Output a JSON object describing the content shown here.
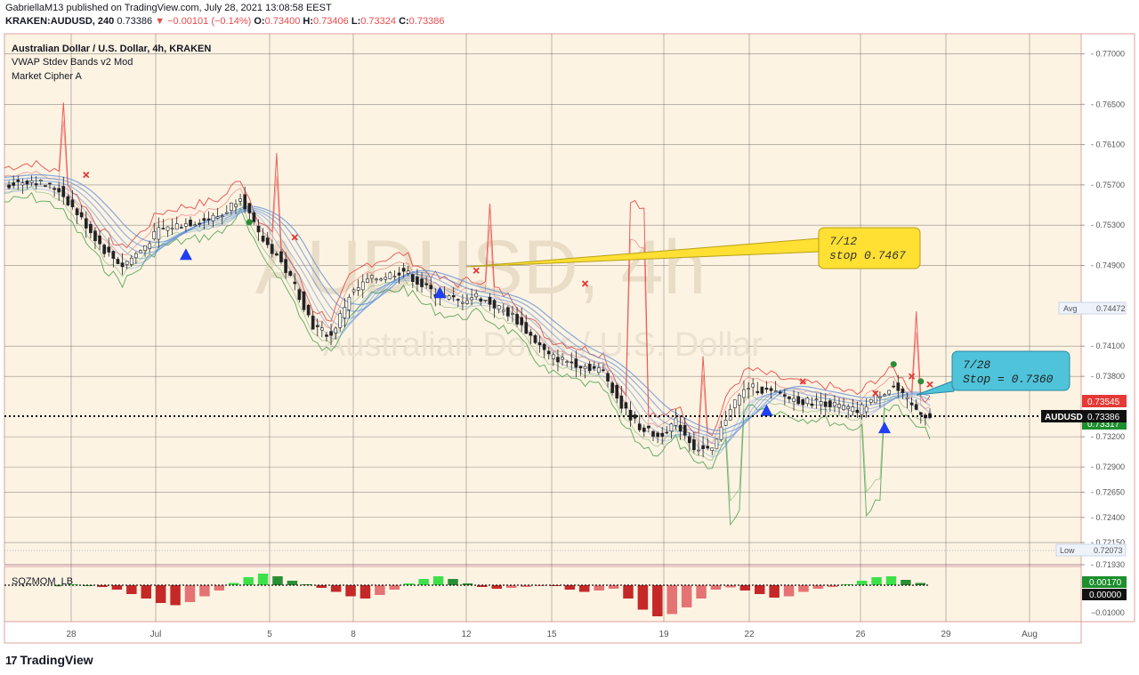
{
  "header": {
    "publisher_line": "GabriellaM13 published on TradingView.com, July 28, 2021 13:08:58 EEST",
    "symbol": "KRAKEN:AUDUSD, 240",
    "last": "0.73386",
    "change": "−0.00101 (−0.14%)",
    "o_label": "O:",
    "o": "0.73400",
    "h_label": "H:",
    "h": "0.73406",
    "l_label": "L:",
    "l": "0.73324",
    "c_label": "C:",
    "c": "0.73386"
  },
  "legend": {
    "title": "Australian Dollar / U.S. Dollar, 4h, KRAKEN",
    "indicator1": "VWAP Stdev Bands v2 Mod",
    "indicator2": "Market Cipher A"
  },
  "watermark": {
    "line1": "AUDUSD, 4h",
    "line2": "Australian Dollar / U.S. Dollar"
  },
  "colors": {
    "background": "#fdf3e3",
    "up": "#26a69a",
    "down": "#ef5350",
    "green_band": "#43a047",
    "red_band": "#e53935",
    "ribbon": "#5c8fd6",
    "callout_yellow": "#ffe033",
    "callout_blue": "#4fc3d9"
  },
  "callouts": [
    {
      "line1": "7/12",
      "line2": "stop 0.7467"
    },
    {
      "line1": "7/28",
      "line2": "Stop = 0.7360"
    }
  ],
  "price_labels": [
    {
      "text": "Avg",
      "value": "0.74472"
    },
    {
      "text": "",
      "value": "0.73545"
    },
    {
      "text": "AUDUSD",
      "value": "0.73386"
    },
    {
      "text": "",
      "value": "0.73317"
    },
    {
      "text": "Low",
      "value": "0.72073"
    }
  ],
  "oscillator": {
    "name": "SQZMOM_LB",
    "labels": [
      "0.00170",
      "0.00000",
      "−0.01000"
    ]
  },
  "branding": "TradingView",
  "chart_data": {
    "type": "candlestick",
    "ylim": [
      0.7193,
      0.772
    ],
    "y_ticks": [
      "0.77000",
      "0.76500",
      "0.76100",
      "0.75700",
      "0.75300",
      "0.74900",
      "0.74100",
      "0.73800",
      "0.73200",
      "0.72900",
      "0.72650",
      "0.72400",
      "0.72150",
      "0.71930"
    ],
    "x_ticks": [
      "28",
      "Jul",
      "5",
      "8",
      "12",
      "15",
      "19",
      "22",
      "26",
      "29",
      "Aug"
    ],
    "approx_close_path": [
      [
        0,
        0.757
      ],
      [
        6,
        0.7575
      ],
      [
        12,
        0.7565
      ],
      [
        18,
        0.753
      ],
      [
        22,
        0.7505
      ],
      [
        26,
        0.749
      ],
      [
        30,
        0.7505
      ],
      [
        34,
        0.7525
      ],
      [
        38,
        0.753
      ],
      [
        44,
        0.7535
      ],
      [
        48,
        0.754
      ],
      [
        52,
        0.756
      ],
      [
        56,
        0.752
      ],
      [
        60,
        0.75
      ],
      [
        64,
        0.747
      ],
      [
        68,
        0.743
      ],
      [
        72,
        0.742
      ],
      [
        76,
        0.746
      ],
      [
        80,
        0.7475
      ],
      [
        84,
        0.748
      ],
      [
        88,
        0.7485
      ],
      [
        92,
        0.747
      ],
      [
        96,
        0.746
      ],
      [
        100,
        0.7455
      ],
      [
        104,
        0.746
      ],
      [
        108,
        0.745
      ],
      [
        112,
        0.744
      ],
      [
        116,
        0.742
      ],
      [
        120,
        0.74
      ],
      [
        124,
        0.7395
      ],
      [
        128,
        0.739
      ],
      [
        132,
        0.7385
      ],
      [
        136,
        0.735
      ],
      [
        140,
        0.733
      ],
      [
        144,
        0.732
      ],
      [
        148,
        0.7335
      ],
      [
        152,
        0.731
      ],
      [
        156,
        0.7305
      ],
      [
        160,
        0.735
      ],
      [
        164,
        0.737
      ],
      [
        168,
        0.7365
      ],
      [
        172,
        0.736
      ],
      [
        176,
        0.7355
      ],
      [
        180,
        0.7355
      ],
      [
        184,
        0.735
      ],
      [
        188,
        0.7345
      ],
      [
        192,
        0.736
      ],
      [
        196,
        0.737
      ],
      [
        200,
        0.735
      ],
      [
        204,
        0.7339
      ]
    ],
    "signals": [
      {
        "type": "up-triangle",
        "x": 40,
        "y": 0.75
      },
      {
        "type": "up-triangle",
        "x": 96,
        "y": 0.7462
      },
      {
        "type": "up-triangle",
        "x": 168,
        "y": 0.7345
      },
      {
        "type": "up-triangle",
        "x": 194,
        "y": 0.7328
      },
      {
        "type": "x-mark",
        "x": 18,
        "y": 0.758
      },
      {
        "type": "x-mark",
        "x": 64,
        "y": 0.7518
      },
      {
        "type": "x-mark",
        "x": 104,
        "y": 0.7485
      },
      {
        "type": "x-mark",
        "x": 128,
        "y": 0.7472
      },
      {
        "type": "x-mark",
        "x": 176,
        "y": 0.7375
      },
      {
        "type": "x-mark",
        "x": 192,
        "y": 0.7363
      },
      {
        "type": "x-mark",
        "x": 200,
        "y": 0.738
      },
      {
        "type": "x-mark",
        "x": 204,
        "y": 0.7372
      },
      {
        "type": "dot",
        "x": 54,
        "y": 0.7533
      },
      {
        "type": "dot",
        "x": 196,
        "y": 0.7392
      },
      {
        "type": "dot",
        "x": 202,
        "y": 0.7375
      }
    ],
    "squeeze_momentum": [
      0.0001,
      0.0002,
      0.0,
      -0.0004,
      -0.001,
      -0.002,
      -0.003,
      -0.004,
      -0.0045,
      -0.0038,
      -0.0025,
      -0.0012,
      0.0005,
      0.0018,
      0.0026,
      0.002,
      0.001,
      0.0002,
      -0.0006,
      -0.0015,
      -0.0025,
      -0.003,
      -0.0022,
      -0.001,
      0.0004,
      0.0014,
      0.002,
      0.0014,
      0.0004,
      -0.0004,
      -0.0008,
      -0.0006,
      -0.0004,
      -0.0002,
      -0.0002,
      -0.001,
      -0.0015,
      -0.0012,
      -0.0008,
      -0.003,
      -0.0055,
      -0.007,
      -0.0065,
      -0.005,
      -0.003,
      -0.001,
      -0.0005,
      -0.0012,
      -0.002,
      -0.0028,
      -0.0025,
      -0.0015,
      -0.0008,
      -0.0004,
      0.0002,
      0.001,
      0.0018,
      0.002,
      0.0012,
      0.0005
    ]
  }
}
